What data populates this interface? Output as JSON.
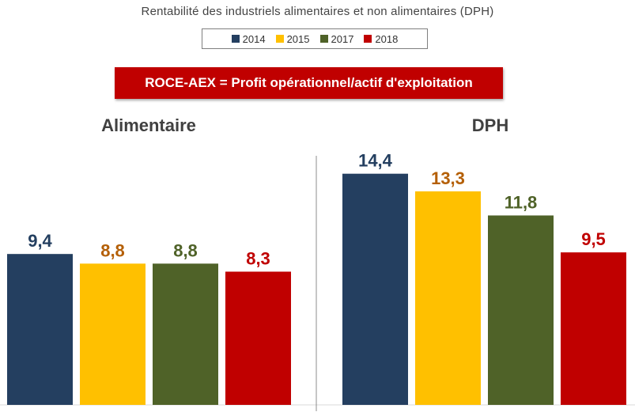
{
  "chart_data": {
    "type": "bar",
    "title": "Rentabilité des industriels alimentaires et non alimentaires (DPH)",
    "annotation": "ROCE-AEX = Profit opérationnel/actif d'exploitation",
    "groups": [
      "Alimentaire",
      "DPH"
    ],
    "series": [
      {
        "name": "2014",
        "color": "#243f60",
        "label_color": "#243f60",
        "values": [
          9.4,
          14.4
        ],
        "labels": [
          "9,4",
          "14,4"
        ]
      },
      {
        "name": "2015",
        "color": "#ffc000",
        "label_color": "#b45f06",
        "values": [
          8.8,
          13.3
        ],
        "labels": [
          "8,8",
          "13,3"
        ]
      },
      {
        "name": "2017",
        "color": "#4f6228",
        "label_color": "#4f6228",
        "values": [
          8.8,
          11.8
        ],
        "labels": [
          "8,8",
          "11,8"
        ]
      },
      {
        "name": "2018",
        "color": "#c00000",
        "label_color": "#c00000",
        "values": [
          8.3,
          9.5
        ],
        "labels": [
          "8,3",
          "9,5"
        ]
      }
    ],
    "ylim": [
      0,
      15
    ],
    "grid": false,
    "legend_position": "top"
  }
}
